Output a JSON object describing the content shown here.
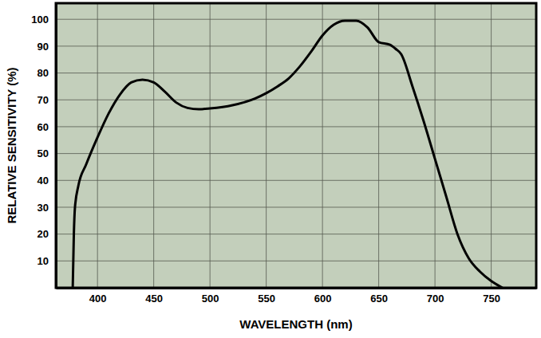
{
  "chart_data": {
    "type": "line",
    "x_label": "WAVELENGTH (nm)",
    "y_label": "RELATIVE SENSITIVITY (%)",
    "x": [
      378,
      379,
      380,
      383,
      390,
      400,
      410,
      420,
      430,
      440,
      450,
      460,
      470,
      480,
      490,
      500,
      520,
      540,
      550,
      560,
      570,
      580,
      590,
      600,
      610,
      620,
      630,
      640,
      650,
      660,
      665,
      670,
      680,
      690,
      700,
      710,
      720,
      730,
      740,
      750,
      760
    ],
    "series": [
      {
        "color": "#000000",
        "values": [
          0,
          20,
          30,
          38,
          46,
          56,
          65,
          72,
          76.5,
          77.5,
          76.5,
          73,
          69,
          67,
          66.5,
          66.8,
          68,
          70.5,
          72.5,
          75,
          78,
          82.5,
          88,
          94,
          98,
          99.5,
          99.5,
          97,
          91.5,
          90.5,
          89,
          87,
          75,
          62,
          48,
          34,
          20,
          11,
          6,
          2.5,
          0
        ]
      }
    ],
    "xlim": [
      363,
      790
    ],
    "ylim": [
      0,
      106
    ],
    "xticks": [
      400,
      450,
      500,
      550,
      600,
      650,
      700,
      750
    ],
    "yticks": [
      10,
      20,
      30,
      40,
      50,
      60,
      70,
      80,
      90,
      100
    ],
    "grid": true
  }
}
